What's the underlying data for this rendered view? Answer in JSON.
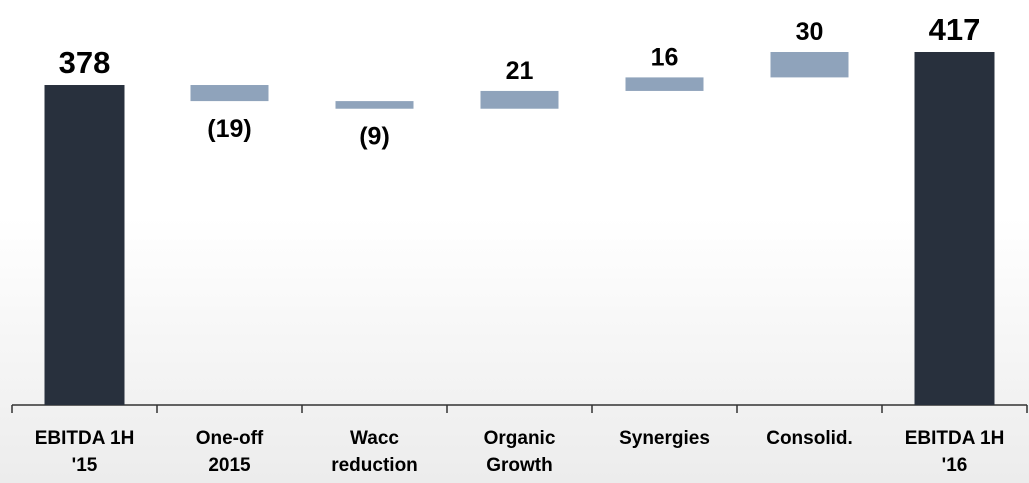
{
  "chart_data": {
    "type": "waterfall",
    "categories": [
      "EBITDA 1H\n'15",
      "One-off\n2015",
      "Wacc\nreduction",
      "Organic\nGrowth",
      "Synergies",
      "Consolid.",
      "EBITDA 1H\n'16"
    ],
    "values": [
      378,
      -19,
      -9,
      21,
      16,
      30,
      417
    ],
    "value_labels": [
      "378",
      "(19)",
      "(9)",
      "21",
      "16",
      "30",
      "417"
    ],
    "colors": [
      "#28303d",
      "#8fa3bb",
      "#8fa3bb",
      "#8fa3bb",
      "#8fa3bb",
      "#8fa3bb",
      "#28303d"
    ]
  }
}
